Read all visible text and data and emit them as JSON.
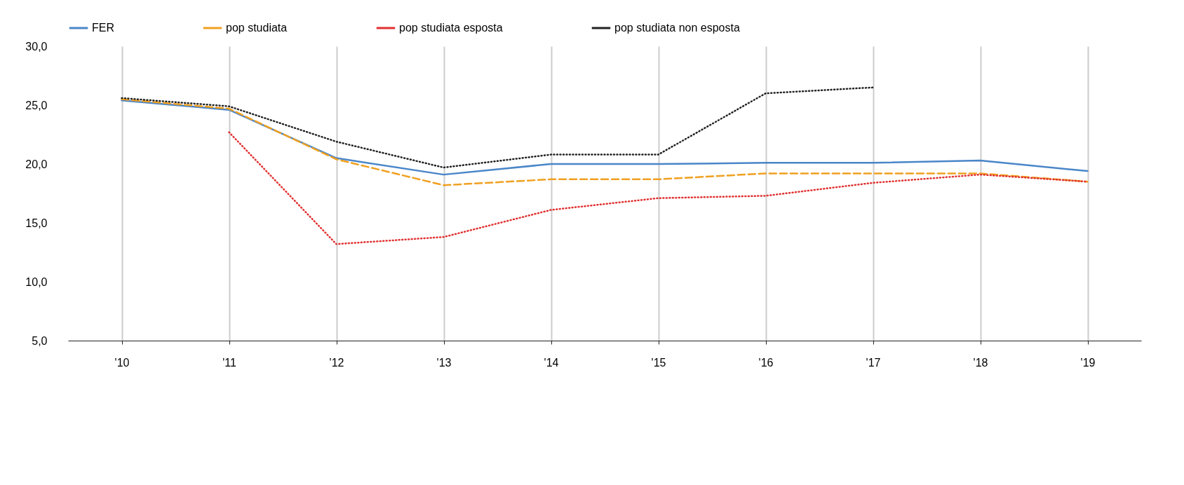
{
  "chart_data": {
    "type": "line",
    "categories": [
      "'10",
      "'11",
      "'12",
      "'13",
      "'14",
      "'15",
      "'16",
      "'17",
      "'18",
      "'19"
    ],
    "series": [
      {
        "name": "FER",
        "color": "#4a86c8",
        "line_style": "solid",
        "values": [
          25.4,
          24.6,
          20.5,
          19.1,
          20.0,
          20.0,
          20.1,
          20.1,
          20.3,
          19.4
        ]
      },
      {
        "name": "pop studiata",
        "color": "#f0a020",
        "line_style": "dashed",
        "values": [
          25.5,
          24.7,
          20.4,
          18.2,
          18.7,
          18.7,
          19.2,
          19.2,
          19.2,
          18.5
        ]
      },
      {
        "name": "pop studiata esposta",
        "color": "#e03030",
        "line_style": "dotted",
        "values": [
          null,
          22.7,
          13.2,
          13.8,
          16.1,
          17.1,
          17.3,
          18.4,
          19.1,
          18.5
        ]
      },
      {
        "name": "pop studiata non esposta",
        "color": "#222222",
        "line_style": "dotted",
        "values": [
          25.6,
          24.9,
          21.9,
          19.7,
          20.8,
          20.8,
          26.0,
          26.5,
          null,
          null
        ]
      }
    ],
    "ylim": [
      5,
      30
    ],
    "yticks": [
      {
        "value": 5,
        "label": "5,0"
      },
      {
        "value": 10,
        "label": "10,0"
      },
      {
        "value": 15,
        "label": "15,0"
      },
      {
        "value": 20,
        "label": "20,0"
      },
      {
        "value": 25,
        "label": "25,0"
      },
      {
        "value": 30,
        "label": "30,0"
      }
    ],
    "grid": "x",
    "legend": "top",
    "marker": "none"
  }
}
